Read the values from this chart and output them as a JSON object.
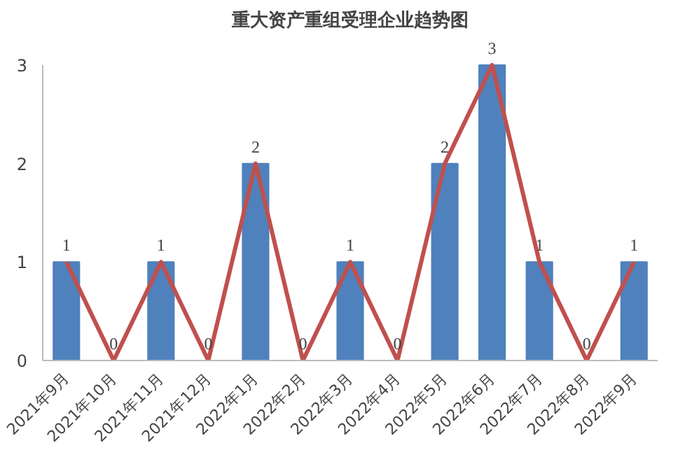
{
  "chart_data": {
    "type": "bar",
    "title": "重大资产重组受理企业趋势图",
    "categories": [
      "2021年9月",
      "2021年10月",
      "2021年11月",
      "2021年12月",
      "2022年1月",
      "2022年2月",
      "2022年3月",
      "2022年4月",
      "2022年5月",
      "2022年6月",
      "2022年7月",
      "2022年8月",
      "2022年9月"
    ],
    "series": [
      {
        "color": "#4f81bd",
        "values": [
          1,
          0,
          1,
          0,
          2,
          0,
          1,
          0,
          2,
          3,
          1,
          0,
          1
        ],
        "value_labels": [
          "1",
          "0",
          "1",
          "0",
          "2",
          "0",
          "1",
          "0",
          "2",
          "3",
          "1",
          "0",
          "1"
        ]
      },
      {
        "type": "line",
        "color": "#c0504d",
        "values": [
          1,
          0,
          1,
          0,
          2,
          0,
          1,
          0,
          2,
          3,
          1,
          0,
          1
        ]
      }
    ],
    "ylim": [
      0,
      3
    ],
    "yticks": [
      0,
      1,
      2,
      3
    ],
    "grid": false
  }
}
